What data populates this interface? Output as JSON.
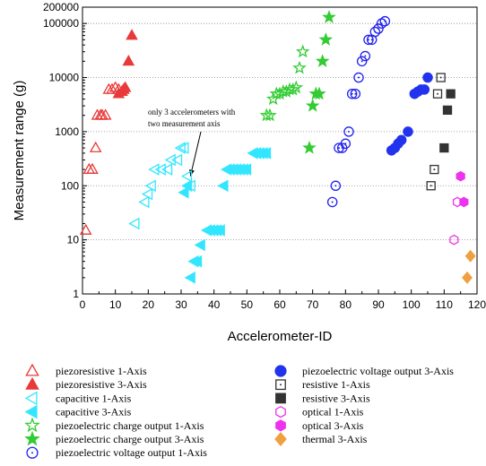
{
  "chart_data": {
    "type": "scatter",
    "xlabel": "Accelerometer-ID",
    "ylabel": "Measurement range (g)",
    "xlim": [
      0,
      120
    ],
    "ylim": [
      1,
      200000
    ],
    "y_scale": "log",
    "grid": "horizontal dotted",
    "legend_position": "below",
    "x_ticks": [
      "0",
      "10",
      "20",
      "30",
      "40",
      "50",
      "60",
      "70",
      "80",
      "90",
      "100",
      "110",
      "120"
    ],
    "y_ticks": [
      {
        "value": 1,
        "label": "1"
      },
      {
        "value": 10,
        "label": "10"
      },
      {
        "value": 100,
        "label": "100"
      },
      {
        "value": 1000,
        "label": "1000"
      },
      {
        "value": 10000,
        "label": "10000"
      },
      {
        "value": 100000,
        "label": "100000"
      },
      {
        "value": 200000,
        "label": "200000"
      }
    ],
    "annotation": {
      "lines": [
        "only 3 accelerometers with",
        "two measurement axis"
      ],
      "points_to": [
        32,
        95
      ]
    },
    "series": [
      {
        "name": "piezoresistive 1-Axis",
        "marker": "triangle-up",
        "filled": false,
        "color": "#e83a3a",
        "points": [
          [
            1,
            15
          ],
          [
            2,
            200
          ],
          [
            3,
            200
          ],
          [
            4,
            500
          ],
          [
            4.5,
            2000
          ],
          [
            5.5,
            2000
          ],
          [
            6,
            2000
          ],
          [
            7,
            2000
          ],
          [
            8,
            6000
          ],
          [
            9,
            6000
          ],
          [
            10,
            6500
          ],
          [
            11,
            6000
          ]
        ]
      },
      {
        "name": "piezoresistive 3-Axis",
        "marker": "triangle-up",
        "filled": true,
        "color": "#e83a3a",
        "points": [
          [
            11,
            5000
          ],
          [
            12,
            5500
          ],
          [
            12.5,
            6000
          ],
          [
            13,
            6500
          ],
          [
            14,
            20000
          ],
          [
            15,
            60000
          ]
        ]
      },
      {
        "name": "capacitive 1-Axis",
        "marker": "triangle-left",
        "filled": false,
        "color": "#33e6ff",
        "points": [
          [
            16,
            20
          ],
          [
            19,
            50
          ],
          [
            20,
            70
          ],
          [
            21,
            100
          ],
          [
            22,
            200
          ],
          [
            24,
            200
          ],
          [
            26,
            200
          ],
          [
            27,
            300
          ],
          [
            29,
            300
          ],
          [
            30,
            500
          ],
          [
            31,
            500
          ],
          [
            32,
            150
          ],
          [
            33,
            100
          ]
        ]
      },
      {
        "name": "capacitive 3-Axis",
        "marker": "triangle-left",
        "filled": true,
        "color": "#33e6ff",
        "points": [
          [
            33,
            2
          ],
          [
            34,
            4
          ],
          [
            35,
            4
          ],
          [
            36,
            8
          ],
          [
            38,
            15
          ],
          [
            39,
            15
          ],
          [
            40,
            15
          ],
          [
            41,
            15
          ],
          [
            42,
            15
          ],
          [
            43,
            100
          ],
          [
            31,
            75
          ],
          [
            32,
            100
          ],
          [
            44,
            200
          ],
          [
            45,
            200
          ],
          [
            46,
            200
          ],
          [
            47,
            200
          ],
          [
            48,
            200
          ],
          [
            49,
            200
          ],
          [
            50,
            200
          ],
          [
            52,
            400
          ],
          [
            53,
            400
          ],
          [
            54,
            400
          ],
          [
            55,
            400
          ],
          [
            56,
            400
          ]
        ]
      },
      {
        "name": "piezoelectric charge output 1-Axis",
        "marker": "star",
        "filled": false,
        "color": "#33cc33",
        "points": [
          [
            56,
            2000
          ],
          [
            57,
            2000
          ],
          [
            58,
            4000
          ],
          [
            59,
            5000
          ],
          [
            60,
            5000
          ],
          [
            61,
            5500
          ],
          [
            62,
            5500
          ],
          [
            63,
            6000
          ],
          [
            64,
            6000
          ],
          [
            65,
            6500
          ],
          [
            66,
            15000
          ],
          [
            67,
            30000
          ]
        ]
      },
      {
        "name": "piezoelectric charge output 3-Axis",
        "marker": "star",
        "filled": true,
        "color": "#33cc33",
        "points": [
          [
            69,
            500
          ],
          [
            70,
            3000
          ],
          [
            71,
            5000
          ],
          [
            72,
            5000
          ],
          [
            73,
            20000
          ],
          [
            74,
            50000
          ],
          [
            75,
            130000
          ]
        ]
      },
      {
        "name": "piezoelectric voltage output 1-Axis",
        "marker": "circle-dot",
        "filled": false,
        "color": "#2222ee",
        "points": [
          [
            76,
            50
          ],
          [
            77,
            100
          ],
          [
            78,
            500
          ],
          [
            79,
            500
          ],
          [
            80,
            600
          ],
          [
            81,
            1000
          ],
          [
            82,
            5000
          ],
          [
            83,
            5000
          ],
          [
            84,
            10000
          ],
          [
            85,
            20000
          ],
          [
            86,
            25000
          ],
          [
            87,
            50000
          ],
          [
            88,
            50000
          ],
          [
            89,
            70000
          ],
          [
            90,
            80000
          ],
          [
            91,
            100000
          ],
          [
            92,
            110000
          ]
        ]
      },
      {
        "name": "piezoelectric voltage output 3-Axis",
        "marker": "circle",
        "filled": true,
        "color": "#2233ee",
        "points": [
          [
            94,
            450
          ],
          [
            95,
            500
          ],
          [
            96,
            600
          ],
          [
            97,
            700
          ],
          [
            99,
            1000
          ],
          [
            101,
            5000
          ],
          [
            102,
            5500
          ],
          [
            103,
            6000
          ],
          [
            104,
            6000
          ],
          [
            105,
            10000
          ]
        ]
      },
      {
        "name": "resistive 1-Axis",
        "marker": "square-dot",
        "filled": false,
        "color": "#333333",
        "points": [
          [
            106,
            100
          ],
          [
            107,
            200
          ],
          [
            108,
            5000
          ],
          [
            109,
            10000
          ]
        ]
      },
      {
        "name": "resistive 3-Axis",
        "marker": "square",
        "filled": true,
        "color": "#333333",
        "points": [
          [
            110,
            500
          ],
          [
            111,
            2500
          ],
          [
            112,
            5000
          ]
        ]
      },
      {
        "name": "optical 1-Axis",
        "marker": "hexagon",
        "filled": false,
        "color": "#ee33ee",
        "points": [
          [
            113,
            10
          ],
          [
            114,
            50
          ]
        ]
      },
      {
        "name": "optical 3-Axis",
        "marker": "hexagon",
        "filled": true,
        "color": "#ee33ee",
        "points": [
          [
            115,
            150
          ],
          [
            116,
            50
          ]
        ]
      },
      {
        "name": "thermal 3-Axis",
        "marker": "diamond",
        "filled": true,
        "color": "#f0a040",
        "points": [
          [
            117,
            2
          ],
          [
            118,
            5
          ]
        ]
      }
    ]
  }
}
